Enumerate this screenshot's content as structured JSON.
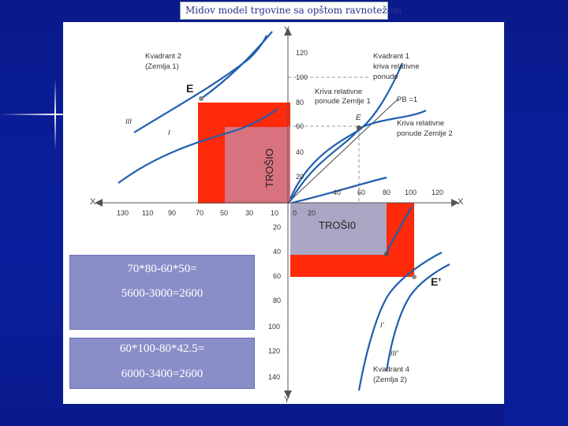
{
  "slide": {
    "title": "Midov model trgovine sa opštom ravnotežom"
  },
  "chart": {
    "y_axis": "Y",
    "x_axis": "X",
    "y_ticks_upper": [
      "120",
      "100",
      "80",
      "60",
      "40",
      "20"
    ],
    "y_ticks_lower": [
      "20",
      "40",
      "60",
      "80",
      "100",
      "120",
      "140"
    ],
    "x_ticks_left": [
      "130",
      "110",
      "90",
      "70",
      "50",
      "30",
      "10"
    ],
    "x_ticks_right": [
      "40",
      "60",
      "80",
      "100",
      "120"
    ],
    "origin": "0",
    "origin_20": "20",
    "quadrant2": "Kvadrant 2",
    "quadrant2_sub": "(Zemlja 1)",
    "quadrant1": "Kvadrant 1",
    "quadrant1_sub1": "kriva relativne",
    "quadrant1_sub2": "ponude",
    "quadrant4": "Kvadrant 4",
    "quadrant4_sub": "(Zemlja 2)",
    "curve1_a": "Kriva relativne",
    "curve1_b": "ponude Zemlje 1",
    "curve2_a": "Kriva relativne",
    "curve2_b": "ponude Zemlje 2",
    "pb_label": "PB =1",
    "label_E": "E",
    "label_E_big": "E",
    "label_E_prime": "E’",
    "label_III": "III",
    "label_I": "I",
    "label_I_prime": "I’",
    "label_III_prime": "III’",
    "trosio": "TROŠIO",
    "trosi0": "TROŠI0"
  },
  "formulas": {
    "box1_line1": "70*80-60*50=",
    "box1_line2": "5600-3000=2600",
    "box2_line1": "60*100-80*42.5=",
    "box2_line2": "6000-3400=2600"
  },
  "colors": {
    "background": "#0b1f9e",
    "axis_blue": "#1f5fae",
    "red": "#ff2a0a",
    "pink": "#d9727f",
    "grey_fill": "#aaa6c4",
    "formula_bg": "#8a8ec8"
  }
}
